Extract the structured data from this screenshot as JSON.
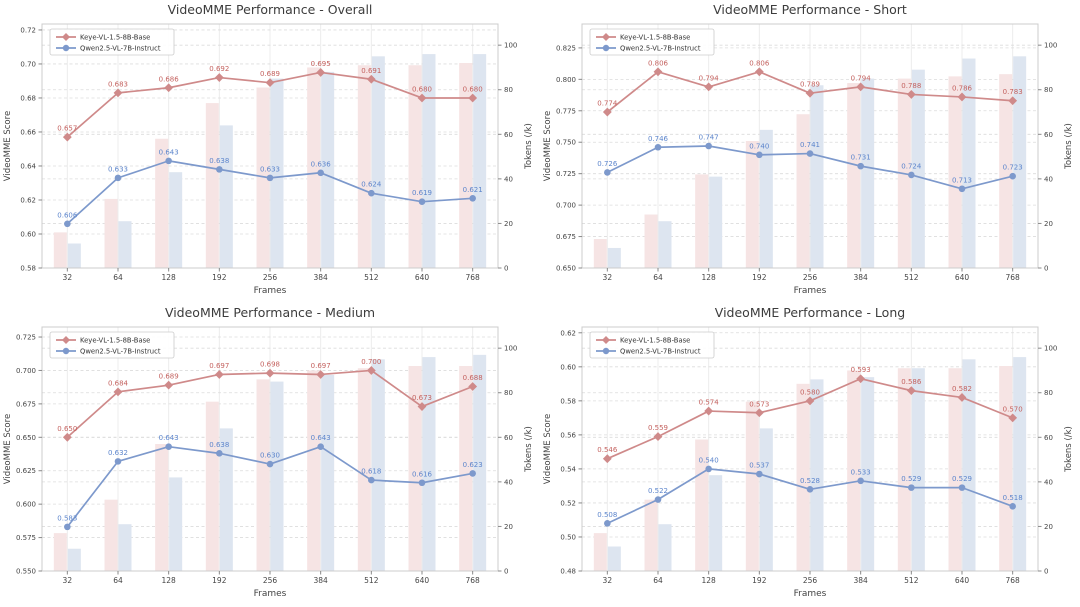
{
  "colors": {
    "keye_line": "#cf8a8a",
    "keye_label": "#c4625f",
    "keye_bar": "#f6e4e4",
    "qwen_line": "#7d99cc",
    "qwen_label": "#5c85cc",
    "qwen_bar": "#dde5f0",
    "axis_box": "#cccccc",
    "grid_v": "#ececec",
    "grid_h": "#dcdcdc",
    "tick_text": "#444444",
    "title_text": "#3c3c3c"
  },
  "chart_data": [
    {
      "type": "line+bar",
      "title": "VideoMME Performance - Overall",
      "xlabel": "Frames",
      "ylabel_left": "VideoMME Score",
      "ylabel_right": "Tokens (/k)",
      "categories": [
        "32",
        "64",
        "128",
        "192",
        "256",
        "384",
        "512",
        "640",
        "768"
      ],
      "y_left": {
        "min": 0.58,
        "max": 0.7235,
        "ticks": [
          0.58,
          0.6,
          0.62,
          0.64,
          0.66,
          0.68,
          0.7,
          0.72
        ],
        "tick_labels": [
          "0.58",
          "0.60",
          "0.62",
          "0.64",
          "0.66",
          "0.68",
          "0.70",
          "0.72"
        ]
      },
      "y_right": {
        "min": 0,
        "max": 109.5,
        "ticks": [
          0,
          20,
          40,
          60,
          80,
          100
        ],
        "tick_labels": [
          "0",
          "20",
          "40",
          "60",
          "80",
          "100"
        ]
      },
      "line_series": [
        {
          "name": "Keye-VL-1.5-8B-Base",
          "marker": "diamond",
          "values": [
            0.657,
            0.683,
            0.686,
            0.692,
            0.689,
            0.695,
            0.691,
            0.68,
            0.68
          ]
        },
        {
          "name": "Qwen2.5-VL-7B-Instruct",
          "marker": "circle",
          "values": [
            0.606,
            0.633,
            0.643,
            0.638,
            0.633,
            0.636,
            0.624,
            0.619,
            0.621
          ]
        }
      ],
      "bar_series": [
        {
          "name": "Keye tokens (k)",
          "values": [
            16,
            31,
            58,
            74,
            81,
            90,
            91,
            91,
            92
          ]
        },
        {
          "name": "Qwen tokens (k)",
          "values": [
            11,
            21,
            43,
            64,
            85,
            88,
            95,
            96,
            96
          ]
        }
      ]
    },
    {
      "type": "line+bar",
      "title": "VideoMME Performance - Short",
      "xlabel": "Frames",
      "ylabel_left": "VideoMME Score",
      "ylabel_right": "Tokens (/k)",
      "categories": [
        "32",
        "64",
        "128",
        "192",
        "256",
        "384",
        "512",
        "640",
        "768"
      ],
      "y_left": {
        "min": 0.65,
        "max": 0.844,
        "ticks": [
          0.65,
          0.675,
          0.7,
          0.725,
          0.75,
          0.775,
          0.8,
          0.825
        ],
        "tick_labels": [
          "0.650",
          "0.675",
          "0.700",
          "0.725",
          "0.750",
          "0.775",
          "0.800",
          "0.825"
        ]
      },
      "y_right": {
        "min": 0,
        "max": 109.5,
        "ticks": [
          0,
          20,
          40,
          60,
          80,
          100
        ],
        "tick_labels": [
          "0",
          "20",
          "40",
          "60",
          "80",
          "100"
        ]
      },
      "line_series": [
        {
          "name": "Keye-VL-1.5-8B-Base",
          "marker": "diamond",
          "values": [
            0.774,
            0.806,
            0.794,
            0.806,
            0.789,
            0.794,
            0.788,
            0.786,
            0.783
          ]
        },
        {
          "name": "Qwen2.5-VL-7B-Instruct",
          "marker": "circle",
          "values": [
            0.726,
            0.746,
            0.747,
            0.74,
            0.741,
            0.731,
            0.724,
            0.713,
            0.723
          ]
        }
      ],
      "bar_series": [
        {
          "name": "Keye tokens (k)",
          "values": [
            13,
            24,
            42,
            57,
            69,
            83,
            85,
            86,
            87
          ]
        },
        {
          "name": "Qwen tokens (k)",
          "values": [
            9,
            21,
            41,
            62,
            82,
            85,
            89,
            94,
            95
          ]
        }
      ]
    },
    {
      "type": "line+bar",
      "title": "VideoMME Performance - Medium",
      "xlabel": "Frames",
      "ylabel_left": "VideoMME Score",
      "ylabel_right": "Tokens (/k)",
      "categories": [
        "32",
        "64",
        "128",
        "192",
        "256",
        "384",
        "512",
        "640",
        "768"
      ],
      "y_left": {
        "min": 0.55,
        "max": 0.7325,
        "ticks": [
          0.55,
          0.575,
          0.6,
          0.625,
          0.65,
          0.675,
          0.7,
          0.725
        ],
        "tick_labels": [
          "0.550",
          "0.575",
          "0.600",
          "0.625",
          "0.650",
          "0.675",
          "0.700",
          "0.725"
        ]
      },
      "y_right": {
        "min": 0,
        "max": 109.5,
        "ticks": [
          0,
          20,
          40,
          60,
          80,
          100
        ],
        "tick_labels": [
          "0",
          "20",
          "40",
          "60",
          "80",
          "100"
        ]
      },
      "line_series": [
        {
          "name": "Keye-VL-1.5-8B-Base",
          "marker": "diamond",
          "values": [
            0.65,
            0.684,
            0.689,
            0.697,
            0.698,
            0.697,
            0.7,
            0.673,
            0.688
          ]
        },
        {
          "name": "Qwen2.5-VL-7B-Instruct",
          "marker": "circle",
          "values": [
            0.583,
            0.632,
            0.643,
            0.638,
            0.63,
            0.643,
            0.618,
            0.616,
            0.623
          ]
        }
      ],
      "bar_series": [
        {
          "name": "Keye tokens (k)",
          "values": [
            17,
            32,
            57,
            76,
            86,
            90,
            91,
            92,
            92
          ]
        },
        {
          "name": "Qwen tokens (k)",
          "values": [
            10,
            21,
            42,
            64,
            85,
            88,
            95,
            96,
            97
          ]
        }
      ]
    },
    {
      "type": "line+bar",
      "title": "VideoMME Performance - Long",
      "xlabel": "Frames",
      "ylabel_left": "VideoMME Score",
      "ylabel_right": "Tokens (/k)",
      "categories": [
        "32",
        "64",
        "128",
        "192",
        "256",
        "384",
        "512",
        "640",
        "768"
      ],
      "y_left": {
        "min": 0.48,
        "max": 0.6234,
        "ticks": [
          0.48,
          0.5,
          0.52,
          0.54,
          0.56,
          0.58,
          0.6,
          0.62
        ],
        "tick_labels": [
          "0.48",
          "0.50",
          "0.52",
          "0.54",
          "0.56",
          "0.58",
          "0.60",
          "0.62"
        ]
      },
      "y_right": {
        "min": 0,
        "max": 109.5,
        "ticks": [
          0,
          20,
          40,
          60,
          80,
          100
        ],
        "tick_labels": [
          "0",
          "20",
          "40",
          "60",
          "80",
          "100"
        ]
      },
      "line_series": [
        {
          "name": "Keye-VL-1.5-8B-Base",
          "marker": "diamond",
          "values": [
            0.546,
            0.559,
            0.574,
            0.573,
            0.58,
            0.593,
            0.586,
            0.582,
            0.57
          ]
        },
        {
          "name": "Qwen2.5-VL-7B-Instruct",
          "marker": "circle",
          "values": [
            0.508,
            0.522,
            0.54,
            0.537,
            0.528,
            0.533,
            0.529,
            0.529,
            0.518
          ]
        }
      ],
      "bar_series": [
        {
          "name": "Keye tokens (k)",
          "values": [
            17,
            32,
            59,
            76,
            84,
            90,
            91,
            91,
            92
          ]
        },
        {
          "name": "Qwen tokens (k)",
          "values": [
            11,
            21,
            43,
            64,
            86,
            87,
            91,
            95,
            96
          ]
        }
      ]
    }
  ]
}
